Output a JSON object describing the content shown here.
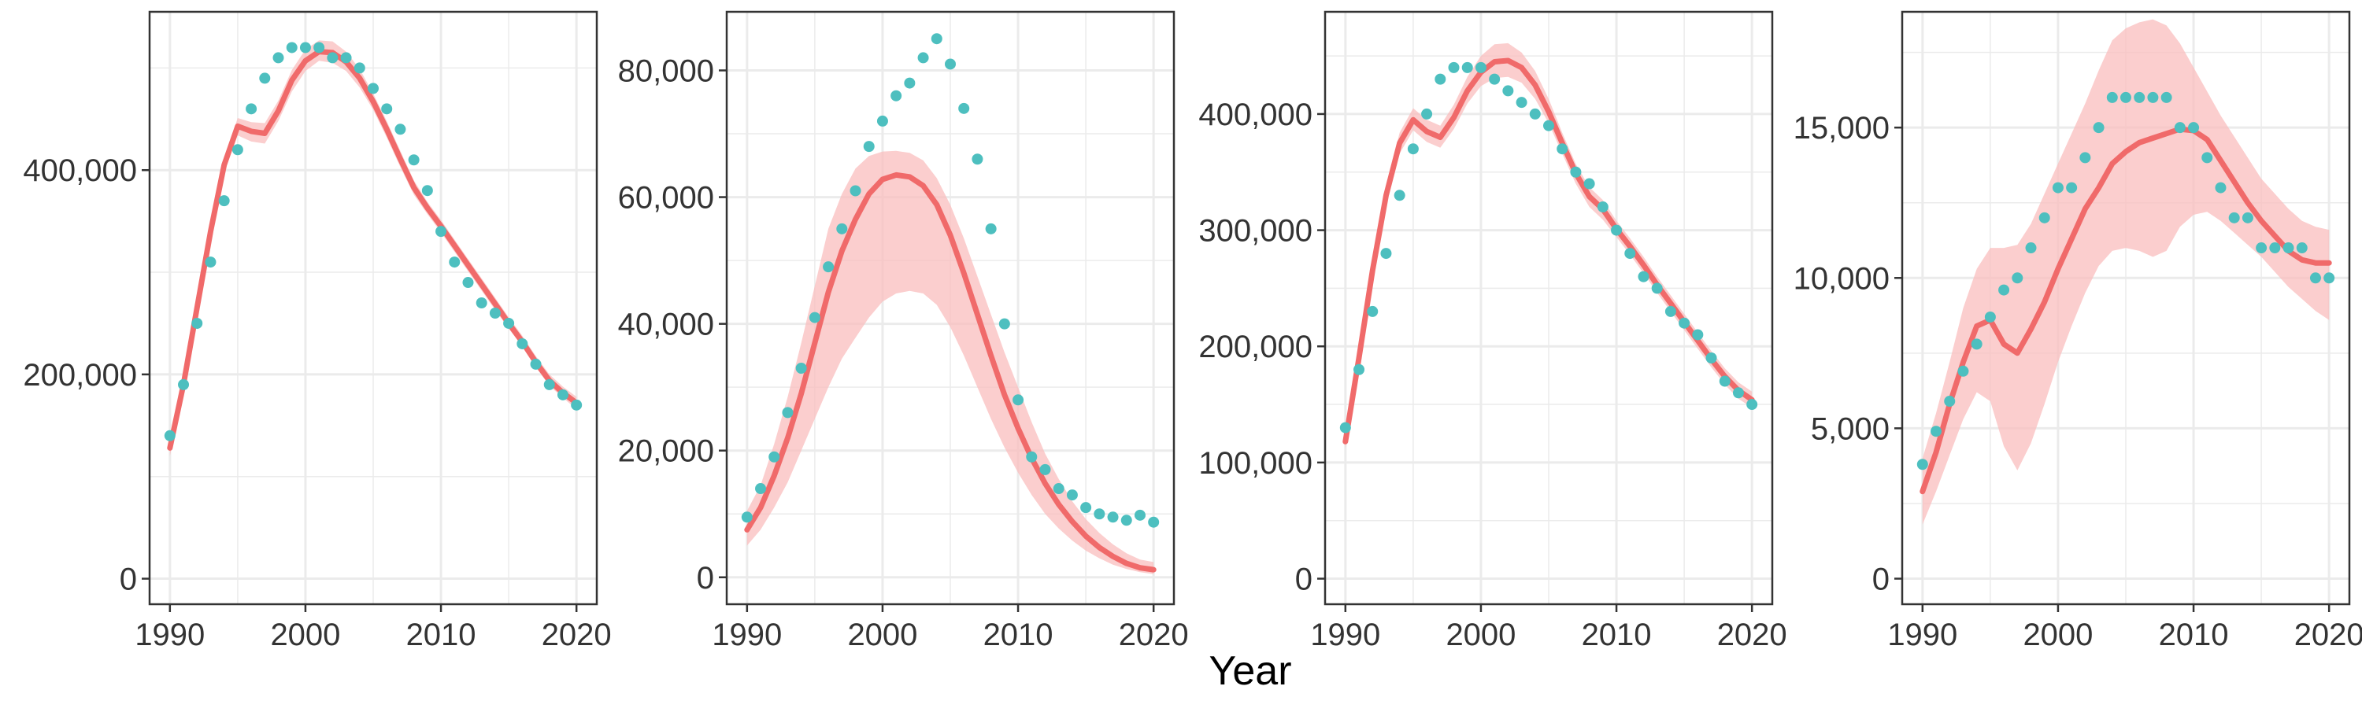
{
  "chart_data": {
    "type": "line",
    "x_axis_title": "Year",
    "colors": {
      "fit_line": "#F06A6A",
      "ribbon": "#F9BEBE",
      "observed": "#4DBFBF",
      "grid": "#EBEBEB",
      "panel_border": "#333333"
    },
    "panels": [
      {
        "name": "panel-1",
        "xlim": [
          1988.5,
          2021.5
        ],
        "ylim": [
          -25000,
          555000
        ],
        "x_ticks": [
          1990,
          2000,
          2010,
          2020
        ],
        "x_tick_labels": [
          "1990",
          "2000",
          "2010",
          "2020"
        ],
        "y_ticks": [
          0,
          200000,
          400000
        ],
        "y_tick_labels": [
          "0",
          "200,000",
          "400,000"
        ],
        "years": [
          1990,
          1991,
          1992,
          1993,
          1994,
          1995,
          1996,
          1997,
          1998,
          1999,
          2000,
          2001,
          2002,
          2003,
          2004,
          2005,
          2006,
          2007,
          2008,
          2009,
          2010,
          2011,
          2012,
          2013,
          2014,
          2015,
          2016,
          2017,
          2018,
          2019,
          2020
        ],
        "observed": [
          140000,
          190000,
          250000,
          310000,
          370000,
          420000,
          460000,
          490000,
          510000,
          520000,
          520000,
          520000,
          510000,
          510000,
          500000,
          480000,
          460000,
          440000,
          410000,
          380000,
          340000,
          310000,
          290000,
          270000,
          260000,
          250000,
          230000,
          210000,
          190000,
          180000,
          170000
        ],
        "fit": [
          128000,
          190000,
          265000,
          340000,
          405000,
          443000,
          438000,
          436000,
          458000,
          488000,
          507000,
          516000,
          515000,
          506000,
          490000,
          467000,
          440000,
          411000,
          383000,
          363000,
          345000,
          326000,
          307000,
          288000,
          269000,
          250000,
          232000,
          212000,
          194000,
          182000,
          172000
        ],
        "lower": [
          120000,
          183000,
          258000,
          333000,
          398000,
          434000,
          428000,
          426000,
          448000,
          477000,
          497000,
          507000,
          505000,
          497000,
          481000,
          459000,
          432000,
          403000,
          376000,
          357000,
          339000,
          320000,
          301000,
          282000,
          263000,
          245000,
          227000,
          207000,
          189000,
          177000,
          166000
        ],
        "upper": [
          136000,
          197000,
          272000,
          347000,
          412000,
          451000,
          447000,
          446000,
          468000,
          498000,
          518000,
          527000,
          526000,
          516000,
          499000,
          475000,
          448000,
          419000,
          390000,
          369000,
          351000,
          332000,
          313000,
          294000,
          275000,
          256000,
          238000,
          218000,
          200000,
          188000,
          178000
        ]
      },
      {
        "name": "panel-2",
        "xlim": [
          1988.5,
          2021.5
        ],
        "ylim": [
          -4250,
          89250
        ],
        "x_ticks": [
          1990,
          2000,
          2010,
          2020
        ],
        "x_tick_labels": [
          "1990",
          "2000",
          "2010",
          "2020"
        ],
        "y_ticks": [
          0,
          20000,
          40000,
          60000,
          80000
        ],
        "y_tick_labels": [
          "0",
          "20,000",
          "40,000",
          "60,000",
          "80,000"
        ],
        "years": [
          1990,
          1991,
          1992,
          1993,
          1994,
          1995,
          1996,
          1997,
          1998,
          1999,
          2000,
          2001,
          2002,
          2003,
          2004,
          2005,
          2006,
          2007,
          2008,
          2009,
          2010,
          2011,
          2012,
          2013,
          2014,
          2015,
          2016,
          2017,
          2018,
          2019,
          2020
        ],
        "observed": [
          9500,
          14000,
          19000,
          26000,
          33000,
          41000,
          49000,
          55000,
          61000,
          68000,
          72000,
          76000,
          78000,
          82000,
          85000,
          81000,
          74000,
          66000,
          55000,
          40000,
          28000,
          19000,
          17000,
          14000,
          13000,
          11000,
          10000,
          9500,
          9000,
          9800,
          8700
        ],
        "fit": [
          7500,
          11000,
          16000,
          22000,
          29000,
          37000,
          45000,
          51500,
          56500,
          60500,
          62800,
          63500,
          63200,
          61800,
          58800,
          54000,
          48000,
          41500,
          35000,
          28800,
          23500,
          18800,
          14800,
          11500,
          8800,
          6500,
          4700,
          3300,
          2200,
          1500,
          1200
        ],
        "lower": [
          5000,
          7500,
          11000,
          15000,
          20000,
          25000,
          30000,
          34500,
          37800,
          41000,
          43500,
          44800,
          45200,
          44800,
          43000,
          39500,
          35000,
          30000,
          25000,
          20500,
          16500,
          13000,
          10000,
          7700,
          5800,
          4200,
          3000,
          2000,
          1300,
          800,
          500
        ],
        "upper": [
          10500,
          14500,
          21000,
          28500,
          37000,
          46000,
          55000,
          60500,
          64500,
          66500,
          67200,
          67300,
          67000,
          65800,
          63000,
          58800,
          53500,
          47500,
          41500,
          35500,
          30000,
          24500,
          19500,
          15500,
          12000,
          9200,
          7000,
          5200,
          3800,
          2800,
          2400
        ]
      },
      {
        "name": "panel-3",
        "xlim": [
          1988.5,
          2021.5
        ],
        "ylim": [
          -22000,
          488000
        ],
        "x_ticks": [
          1990,
          2000,
          2010,
          2020
        ],
        "x_tick_labels": [
          "1990",
          "2000",
          "2010",
          "2020"
        ],
        "y_ticks": [
          0,
          100000,
          200000,
          300000,
          400000
        ],
        "y_tick_labels": [
          "0",
          "100,000",
          "200,000",
          "300,000",
          "400,000"
        ],
        "years": [
          1990,
          1991,
          1992,
          1993,
          1994,
          1995,
          1996,
          1997,
          1998,
          1999,
          2000,
          2001,
          2002,
          2003,
          2004,
          2005,
          2006,
          2007,
          2008,
          2009,
          2010,
          2011,
          2012,
          2013,
          2014,
          2015,
          2016,
          2017,
          2018,
          2019,
          2020
        ],
        "observed": [
          130000,
          180000,
          230000,
          280000,
          330000,
          370000,
          400000,
          430000,
          440000,
          440000,
          440000,
          430000,
          420000,
          410000,
          400000,
          390000,
          370000,
          350000,
          340000,
          320000,
          300000,
          280000,
          260000,
          250000,
          230000,
          220000,
          210000,
          190000,
          170000,
          160000,
          150000
        ],
        "fit": [
          118000,
          190000,
          265000,
          330000,
          375000,
          395000,
          385000,
          380000,
          397000,
          420000,
          436000,
          445000,
          446000,
          440000,
          425000,
          402000,
          375000,
          349000,
          329000,
          318000,
          301000,
          286000,
          270000,
          253000,
          237000,
          221000,
          205000,
          189000,
          174000,
          162000,
          154000
        ],
        "lower": [
          112000,
          183000,
          256000,
          321000,
          366000,
          386000,
          376000,
          371000,
          387000,
          409000,
          424000,
          431000,
          432000,
          427000,
          413000,
          392000,
          366000,
          340000,
          320000,
          309000,
          294000,
          279000,
          263000,
          246000,
          230000,
          214000,
          198000,
          182000,
          167000,
          155000,
          147000
        ],
        "upper": [
          124000,
          197000,
          274000,
          339000,
          384000,
          405000,
          395000,
          390000,
          408000,
          432000,
          450000,
          460000,
          461000,
          453000,
          437000,
          413000,
          384000,
          357000,
          337000,
          326000,
          308000,
          293000,
          277000,
          260000,
          244000,
          228000,
          212000,
          196000,
          181000,
          169000,
          161000
        ]
      },
      {
        "name": "panel-4",
        "xlim": [
          1988.5,
          2021.5
        ],
        "ylim": [
          -850,
          18850
        ],
        "x_ticks": [
          1990,
          2000,
          2010,
          2020
        ],
        "x_tick_labels": [
          "1990",
          "2000",
          "2010",
          "2020"
        ],
        "y_ticks": [
          0,
          5000,
          10000,
          15000
        ],
        "y_tick_labels": [
          "0",
          "5,000",
          "10,000",
          "15,000"
        ],
        "years": [
          1990,
          1991,
          1992,
          1993,
          1994,
          1995,
          1996,
          1997,
          1998,
          1999,
          2000,
          2001,
          2002,
          2003,
          2004,
          2005,
          2006,
          2007,
          2008,
          2009,
          2010,
          2011,
          2012,
          2013,
          2014,
          2015,
          2016,
          2017,
          2018,
          2019,
          2020
        ],
        "observed": [
          3800,
          4900,
          5900,
          6900,
          7800,
          8700,
          9600,
          10000,
          11000,
          12000,
          13000,
          13000,
          14000,
          15000,
          16000,
          16000,
          16000,
          16000,
          16000,
          15000,
          15000,
          14000,
          13000,
          12000,
          12000,
          11000,
          11000,
          11000,
          11000,
          10000,
          10000
        ],
        "fit": [
          2900,
          4200,
          5800,
          7200,
          8400,
          8600,
          7800,
          7500,
          8300,
          9200,
          10300,
          11300,
          12300,
          13000,
          13800,
          14200,
          14500,
          14650,
          14800,
          14950,
          14900,
          14600,
          13900,
          13200,
          12500,
          11900,
          11400,
          10900,
          10600,
          10500,
          10500
        ],
        "lower": [
          1800,
          2900,
          4100,
          5300,
          6200,
          5900,
          4400,
          3600,
          4500,
          5800,
          7200,
          8400,
          9500,
          10400,
          10900,
          11000,
          10900,
          10700,
          10900,
          11700,
          12100,
          12200,
          11900,
          11500,
          11100,
          10700,
          10200,
          9700,
          9300,
          8900,
          8600
        ],
        "upper": [
          4000,
          5500,
          7200,
          9000,
          10300,
          11000,
          11000,
          11100,
          11800,
          12800,
          13800,
          14800,
          15800,
          16900,
          17900,
          18300,
          18500,
          18600,
          18400,
          17800,
          17000,
          16200,
          15400,
          14700,
          14000,
          13300,
          12800,
          12300,
          11900,
          11700,
          11600
        ]
      }
    ]
  }
}
